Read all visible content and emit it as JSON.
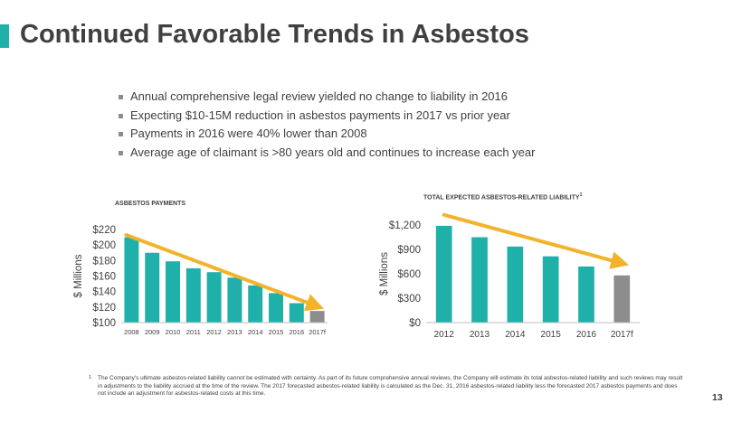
{
  "slide": {
    "title": "Continued Favorable Trends in Asbestos",
    "page_number": "13",
    "accent_color": "#1fb0aa"
  },
  "bullets": [
    "Annual comprehensive legal review yielded no change to liability in 2016",
    "Expecting $10-15M reduction in asbestos payments in 2017 vs prior year",
    "Payments in 2016 were 40% lower than 2008",
    "Average age of claimant is >80 years old and continues to increase each year"
  ],
  "footnote": {
    "marker": "1",
    "text": "The Company's ultimate asbestos-related liability cannot be estimated with certainty. As part of its future comprehensive annual reviews, the Company will estimate its total asbestos-related liability and such reviews may result in adjustments to the liability accrued at the time of the review. The 2017 forecasted asbestos-related liability is calculated as the Dec. 31, 2016 asbestos-related liability less the forecasted 2017 asbestos payments and does not include an adjustment for asbestos-related costs at this time."
  },
  "chart_data": [
    {
      "type": "bar",
      "title": "ASBESTOS PAYMENTS",
      "ylabel": "$ Millions",
      "xlabel": "",
      "categories": [
        "2008",
        "2009",
        "2010",
        "2011",
        "2012",
        "2013",
        "2014",
        "2015",
        "2016",
        "2017f"
      ],
      "values": [
        210,
        190,
        179,
        170,
        165,
        158,
        148,
        138,
        125,
        115
      ],
      "ylim": [
        100,
        220
      ],
      "yticks": [
        100,
        120,
        140,
        160,
        180,
        200,
        220
      ],
      "ytick_labels": [
        "$100",
        "$120",
        "$140",
        "$160",
        "$180",
        "$200",
        "$220"
      ],
      "bar_color": "#1fb0aa",
      "forecast_color": "#8c8c8c",
      "trend_color": "#f2b32b",
      "trend": {
        "from": [
          0,
          213
        ],
        "to": [
          9,
          121
        ]
      },
      "grid": false
    },
    {
      "type": "bar",
      "title": "TOTAL EXPECTED ASBESTOS-RELATED LIABILITY",
      "title_sup": "1",
      "ylabel": "$ Millions",
      "xlabel": "",
      "categories": [
        "2012",
        "2013",
        "2014",
        "2015",
        "2016",
        "2017f"
      ],
      "values": [
        1190,
        1050,
        935,
        815,
        690,
        580
      ],
      "ylim": [
        0,
        1200
      ],
      "yticks": [
        0,
        300,
        600,
        900,
        1200
      ],
      "ytick_labels": [
        "$0",
        "$300",
        "$600",
        "$900",
        "$1,200"
      ],
      "bar_color": "#1fb0aa",
      "forecast_color": "#8c8c8c",
      "trend_color": "#f2b32b",
      "trend": {
        "from": [
          0,
          1325
        ],
        "to": [
          5,
          730
        ]
      },
      "grid": false
    }
  ]
}
